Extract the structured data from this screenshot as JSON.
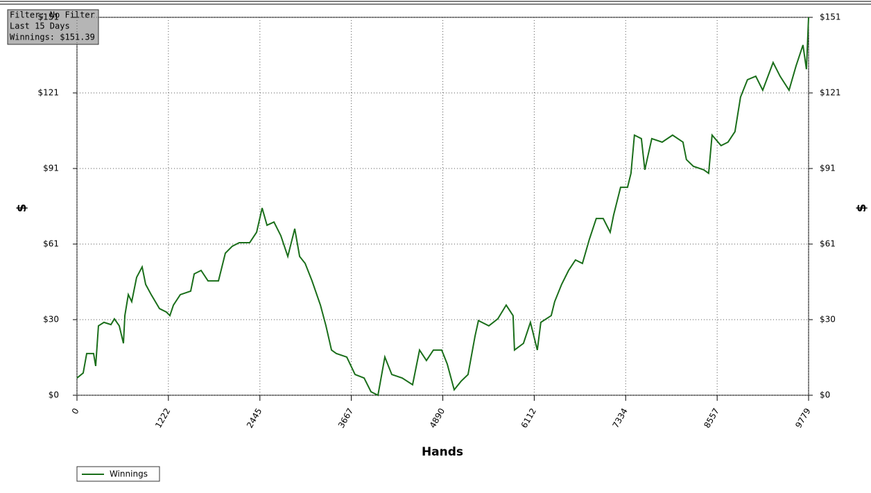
{
  "chart_data": {
    "type": "line",
    "info_box": [
      "Filter: No Filter",
      "Last 15 Days",
      "Winnings: $151.39"
    ],
    "x_label": "Hands",
    "y_label": "$",
    "y2_label": "$",
    "grid": true,
    "legend": "bottom-left",
    "xlim": [
      0,
      9779
    ],
    "xticks": [
      0,
      1222,
      2445,
      3667,
      4890,
      6112,
      7334,
      8557,
      9779
    ],
    "ylim": [
      0,
      151.39
    ],
    "yticks": [
      {
        "value": 0,
        "label": "$0"
      },
      {
        "value": 30.28,
        "label": "$30"
      },
      {
        "value": 60.56,
        "label": "$61"
      },
      {
        "value": 90.83,
        "label": "$91"
      },
      {
        "value": 121.11,
        "label": "$121"
      },
      {
        "value": 151.39,
        "label": "$151"
      }
    ],
    "x": [
      0,
      83,
      130,
      222,
      250,
      287,
      361,
      454,
      500,
      565,
      621,
      640,
      686,
      732,
      797,
      871,
      918,
      992,
      1103,
      1196,
      1242,
      1289,
      1381,
      1520,
      1567,
      1659,
      1752,
      1891,
      1983,
      2076,
      2169,
      2308,
      2401,
      2475,
      2540,
      2633,
      2725,
      2818,
      2911,
      2976,
      3050,
      3142,
      3254,
      3328,
      3402,
      3467,
      3606,
      3717,
      3838,
      3930,
      4023,
      4115,
      4208,
      4347,
      4486,
      4579,
      4671,
      4764,
      4875,
      4949,
      5042,
      5134,
      5227,
      5320,
      5366,
      5505,
      5625,
      5737,
      5829,
      5848,
      5968,
      6061,
      6153,
      6200,
      6339,
      6385,
      6478,
      6571,
      6663,
      6756,
      6849,
      6941,
      7034,
      7127,
      7173,
      7266,
      7359,
      7405,
      7451,
      7544,
      7590,
      7683,
      7822,
      7961,
      8100,
      8146,
      8239,
      8378,
      8443,
      8489,
      8609,
      8702,
      8795,
      8869,
      8962,
      9073,
      9166,
      9305,
      9398,
      9518,
      9611,
      9704,
      9750,
      9779
    ],
    "series": [
      {
        "name": "Winnings",
        "color": "#1a6e1a",
        "values": [
          6.9,
          8.9,
          16.7,
          16.7,
          11.7,
          27.8,
          29.2,
          28.3,
          30.6,
          27.8,
          20.8,
          31.9,
          40.3,
          37.5,
          47.2,
          51.4,
          44.4,
          40.3,
          34.7,
          33.3,
          31.9,
          36.1,
          40.3,
          41.7,
          48.6,
          50.0,
          45.8,
          45.8,
          56.9,
          59.7,
          61.1,
          61.1,
          65.3,
          75.0,
          68.1,
          69.4,
          63.9,
          55.6,
          66.7,
          55.6,
          52.8,
          45.8,
          36.1,
          27.8,
          18.1,
          16.7,
          15.3,
          8.3,
          6.9,
          1.4,
          0,
          15.3,
          8.3,
          6.9,
          4.2,
          18.1,
          13.9,
          18.1,
          18.1,
          12.5,
          2.2,
          5.6,
          8.3,
          23.6,
          29.9,
          27.8,
          30.6,
          36.1,
          31.9,
          18.1,
          20.8,
          29.2,
          18.1,
          29.2,
          31.9,
          37.5,
          44.4,
          50.0,
          54.2,
          52.8,
          62.5,
          70.8,
          70.8,
          65.3,
          72.2,
          83.3,
          83.3,
          88.9,
          104.2,
          102.8,
          90.3,
          102.8,
          101.4,
          104.2,
          101.4,
          94.4,
          91.7,
          90.3,
          88.9,
          104.2,
          100.0,
          101.4,
          105.6,
          119.4,
          126.4,
          127.8,
          122.2,
          133.3,
          127.8,
          122.2,
          131.9,
          140.3,
          130.6,
          151.39
        ]
      }
    ]
  }
}
